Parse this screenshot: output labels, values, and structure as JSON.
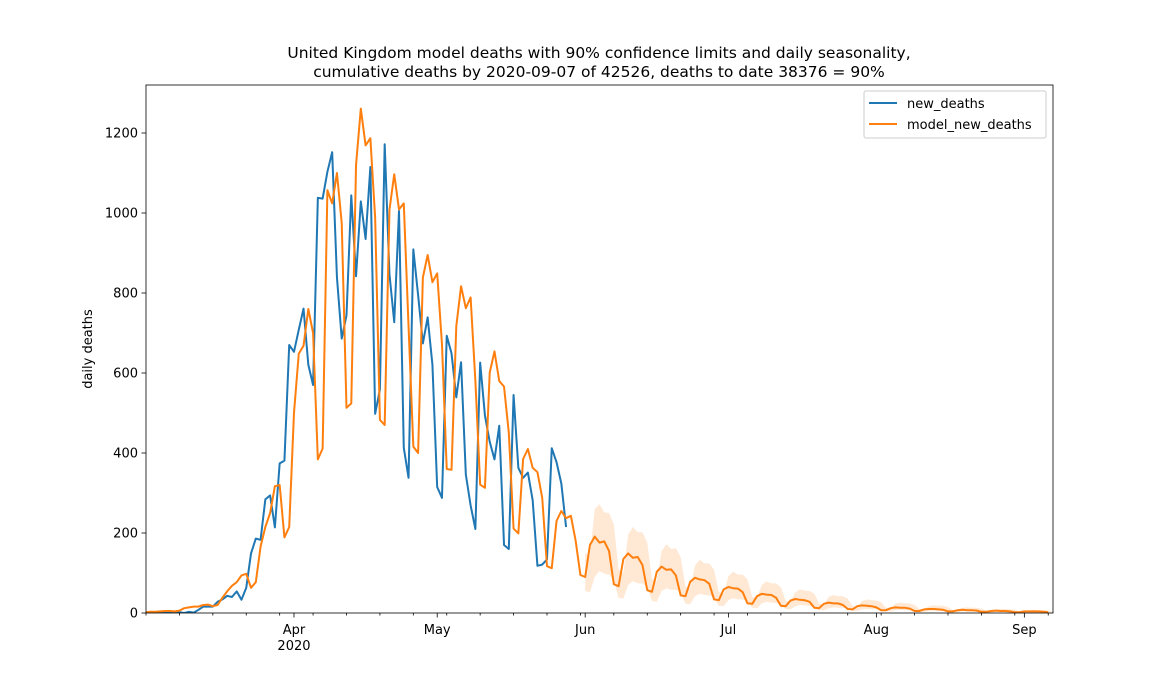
{
  "chart_data": {
    "type": "line",
    "title": "United Kingdom model deaths with 90% confidence limits and daily seasonality,",
    "subtitle": "cumulative deaths by 2020-09-07 of 42526, deaths to date 38376 = 90%",
    "xlabel": "",
    "ylabel": "daily deaths",
    "xlim": [
      "2020-03-01",
      "2020-09-07"
    ],
    "ylim": [
      0,
      1320
    ],
    "x_ticks": [
      {
        "date": "2020-04-01",
        "label": "Apr",
        "sublabel": "2020"
      },
      {
        "date": "2020-05-01",
        "label": "May",
        "sublabel": ""
      },
      {
        "date": "2020-06-01",
        "label": "Jun",
        "sublabel": ""
      },
      {
        "date": "2020-07-01",
        "label": "Jul",
        "sublabel": ""
      },
      {
        "date": "2020-08-01",
        "label": "Aug",
        "sublabel": ""
      },
      {
        "date": "2020-09-01",
        "label": "Sep",
        "sublabel": ""
      }
    ],
    "y_ticks": [
      0,
      200,
      400,
      600,
      800,
      1000,
      1200
    ],
    "grid": false,
    "legend_position": "top-right",
    "series": [
      {
        "name": "new_deaths",
        "color": "#1f77b4",
        "start_date": "2020-03-01",
        "values": [
          0,
          0,
          0,
          0,
          0,
          1,
          1,
          2,
          0,
          3,
          1,
          8,
          16,
          16,
          16,
          28,
          34,
          43,
          40,
          54,
          33,
          63,
          149,
          186,
          183,
          284,
          294,
          214,
          374,
          381,
          670,
          653,
          708,
          761,
          621,
          570,
          1038,
          1036,
          1103,
          1152,
          839,
          686,
          744,
          1044,
          842,
          1029,
          935,
          1115,
          498,
          559,
          1172,
          847,
          727,
          1005,
          413,
          338,
          909,
          795,
          674,
          739,
          621,
          315,
          288,
          693,
          649,
          539,
          627,
          346,
          269,
          210,
          626,
          494,
          428,
          384,
          468,
          170,
          160,
          545,
          363,
          338,
          351,
          282,
          118,
          121,
          134,
          412,
          377,
          324,
          215
        ]
      },
      {
        "name": "model_new_deaths",
        "color": "#ff7f0e",
        "start_date": "2020-03-01",
        "values": [
          2,
          3,
          3,
          4,
          5,
          5,
          4,
          6,
          12,
          14,
          16,
          16,
          20,
          21,
          17,
          20,
          38,
          54,
          68,
          77,
          94,
          98,
          63,
          77,
          166,
          215,
          250,
          317,
          320,
          189,
          215,
          500,
          648,
          668,
          760,
          700,
          384,
          411,
          1057,
          1024,
          1100,
          975,
          513,
          524,
          1120,
          1261,
          1169,
          1187,
          989,
          483,
          470,
          1008,
          1097,
          1009,
          1024,
          716,
          416,
          400,
          839,
          895,
          827,
          849,
          672,
          360,
          358,
          717,
          817,
          762,
          789,
          580,
          321,
          313,
          601,
          654,
          580,
          566,
          451,
          211,
          199,
          385,
          410,
          363,
          352,
          288,
          117,
          112,
          230,
          255,
          237,
          243,
          181,
          95,
          90,
          170,
          191,
          176,
          179,
          155,
          72,
          67,
          135,
          149,
          138,
          140,
          120,
          57,
          53,
          103,
          116,
          108,
          109,
          94,
          44,
          42,
          78,
          88,
          84,
          82,
          73,
          34,
          32,
          59,
          65,
          62,
          61,
          52,
          24,
          23,
          42,
          48,
          46,
          45,
          38,
          18,
          17,
          31,
          35,
          33,
          32,
          28,
          13,
          12,
          23,
          26,
          24,
          24,
          20,
          10,
          9,
          17,
          19,
          18,
          17,
          14,
          7,
          7,
          12,
          14,
          13,
          13,
          11,
          5,
          5,
          9,
          10,
          10,
          9,
          8,
          4,
          4,
          7,
          8,
          7,
          7,
          6,
          3,
          3,
          5,
          6,
          5,
          5,
          4,
          2,
          2,
          4,
          4,
          4,
          4,
          3,
          2
        ]
      }
    ],
    "confidence_band": {
      "label": "90% confidence limits",
      "color": "#ff7f0e",
      "start_date": "2020-06-01",
      "lower": [
        55,
        52,
        90,
        105,
        98,
        96,
        82,
        38,
        36,
        70,
        80,
        74,
        74,
        64,
        30,
        28,
        55,
        62,
        58,
        58,
        50,
        23,
        22,
        42,
        48,
        45,
        44,
        38,
        18,
        17,
        32,
        37,
        34,
        34,
        29,
        13,
        12,
        24,
        28,
        26,
        25,
        21,
        10,
        9,
        17,
        20,
        19,
        18,
        15,
        7,
        7,
        12,
        14,
        13,
        13,
        11,
        5,
        5,
        9,
        10,
        10,
        9,
        8,
        4,
        4,
        7,
        8,
        7,
        7,
        6,
        3,
        3,
        5,
        6,
        5,
        5,
        4,
        2,
        2,
        4,
        4,
        4,
        4,
        3,
        2,
        1,
        3,
        3,
        3,
        3,
        2,
        1,
        1,
        2,
        2,
        2,
        2,
        2,
        1,
        1
      ],
      "upper": [
        150,
        142,
        260,
        272,
        252,
        250,
        222,
        108,
        100,
        196,
        215,
        202,
        202,
        176,
        84,
        80,
        155,
        172,
        160,
        162,
        140,
        66,
        62,
        118,
        133,
        124,
        124,
        108,
        52,
        48,
        92,
        103,
        96,
        96,
        84,
        40,
        38,
        70,
        79,
        74,
        74,
        64,
        30,
        28,
        52,
        59,
        56,
        55,
        48,
        23,
        22,
        40,
        45,
        42,
        42,
        36,
        17,
        16,
        30,
        34,
        32,
        31,
        27,
        13,
        13,
        23,
        26,
        24,
        24,
        20,
        10,
        10,
        17,
        19,
        18,
        18,
        15,
        7,
        7,
        13,
        14,
        13,
        13,
        11,
        6,
        5,
        9,
        10,
        10,
        9,
        8,
        4,
        4,
        7,
        8,
        7,
        7,
        6,
        3,
        3
      ]
    }
  }
}
